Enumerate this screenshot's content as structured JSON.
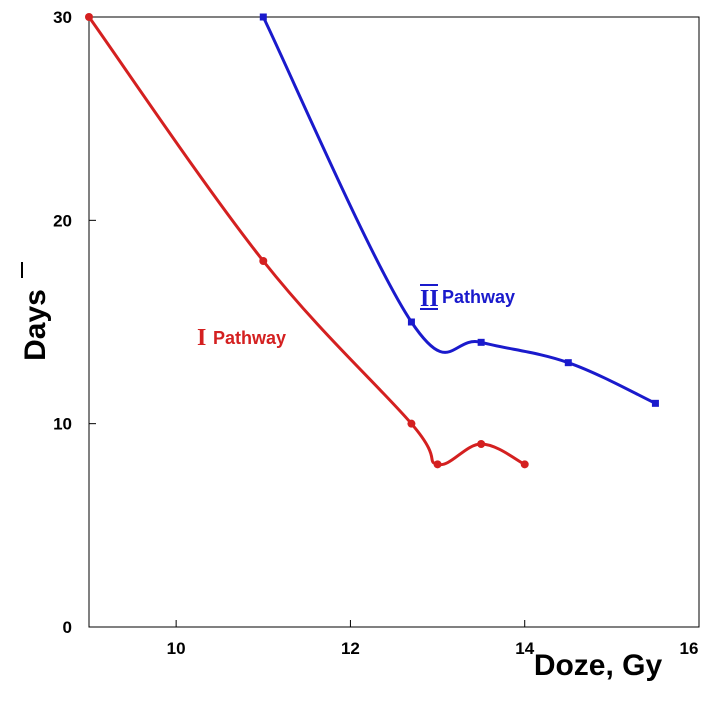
{
  "chart_data": {
    "type": "line",
    "xlabel": "Doze, Gy",
    "ylabel": "Days",
    "xlim": [
      9,
      16
    ],
    "ylim": [
      0,
      30
    ],
    "x_ticks": [
      10,
      12,
      14,
      16
    ],
    "y_ticks": [
      0,
      10,
      20,
      30
    ],
    "grid": false,
    "series": [
      {
        "color": "#d42020",
        "marker": "circle",
        "points": [
          [
            9,
            30
          ],
          [
            11,
            18
          ],
          [
            12.7,
            10
          ],
          [
            13,
            8
          ],
          [
            13.5,
            9
          ],
          [
            14,
            8
          ]
        ]
      },
      {
        "color": "#1a1acc",
        "marker": "square",
        "points": [
          [
            11,
            30
          ],
          [
            12.7,
            15
          ],
          [
            13.5,
            14
          ],
          [
            14.5,
            13
          ],
          [
            15.5,
            11
          ]
        ]
      }
    ],
    "annotations": [
      {
        "roman": "I",
        "text": "Pathway",
        "color": "#d42020"
      },
      {
        "roman": "II",
        "text": "Pathway",
        "color": "#1a1acc"
      }
    ]
  }
}
